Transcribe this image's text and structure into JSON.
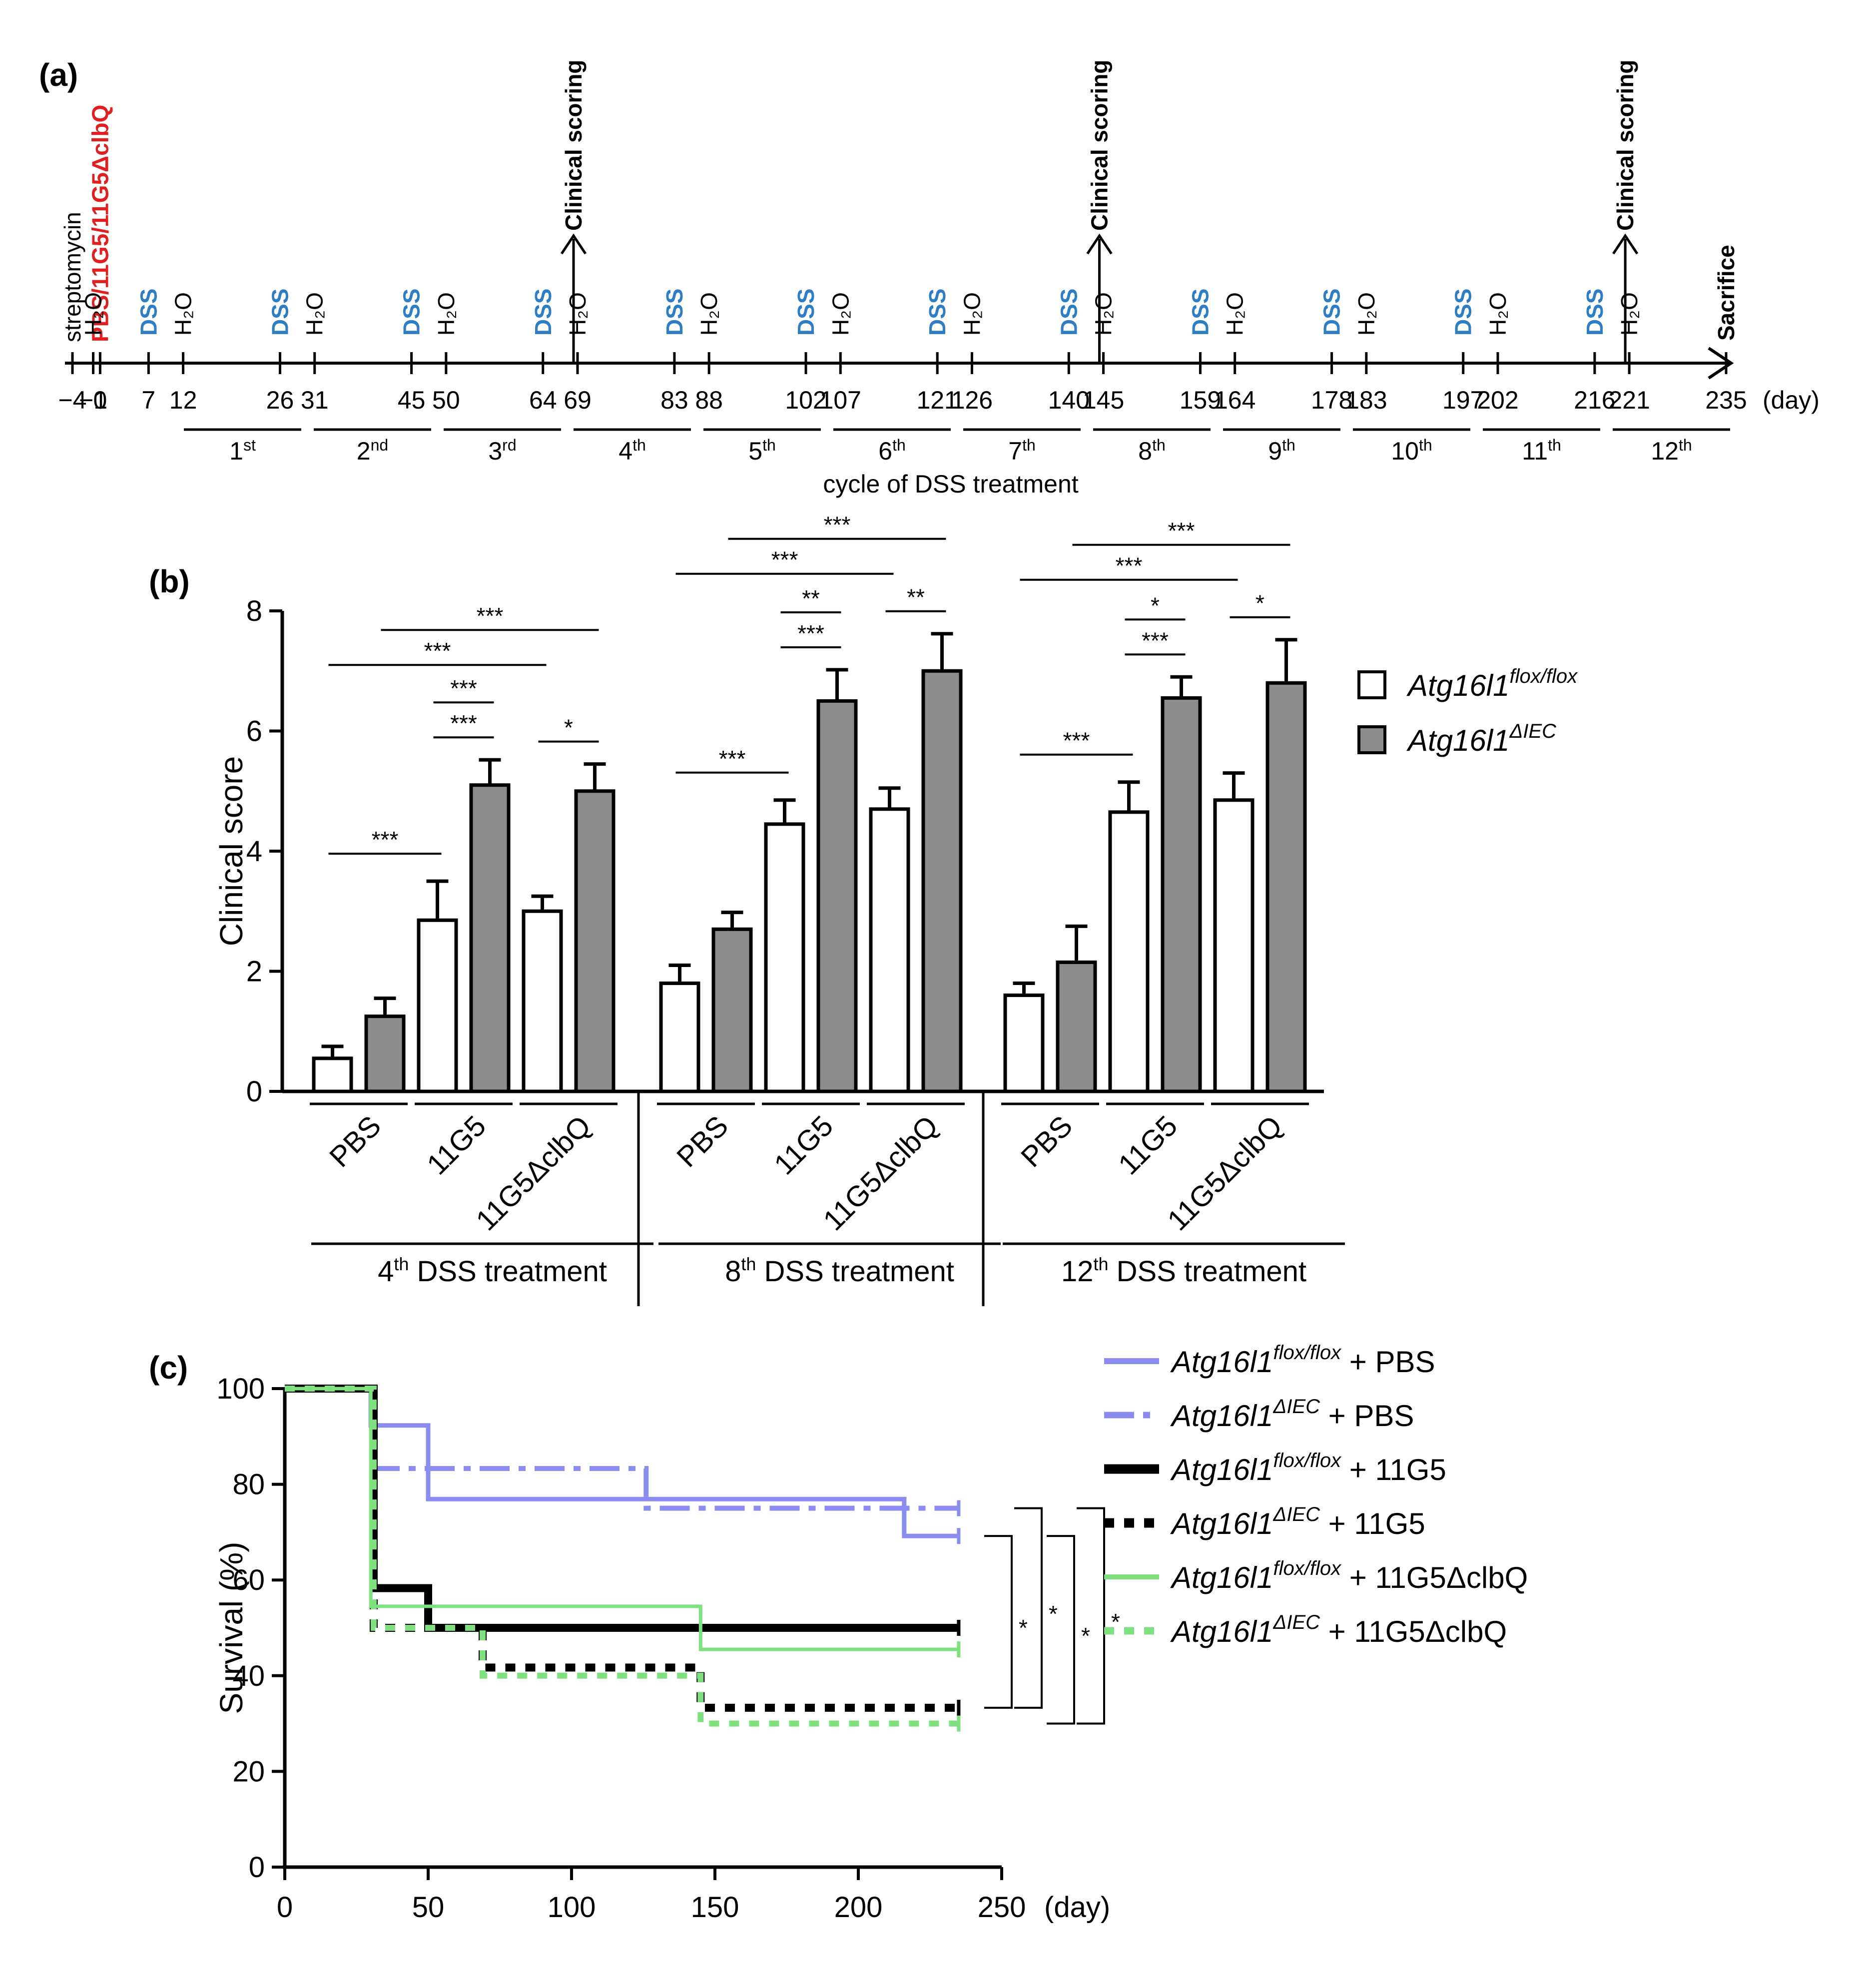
{
  "panels": {
    "a": "(a)",
    "b": "(b)",
    "c": "(c)"
  },
  "timeline": {
    "ticks": [
      "−4",
      "−1",
      "0",
      "7",
      "12",
      "26",
      "31",
      "45",
      "50",
      "64",
      "69",
      "83",
      "88",
      "102",
      "107",
      "121",
      "126",
      "140",
      "145",
      "159",
      "164",
      "178",
      "183",
      "197",
      "202",
      "216",
      "221",
      "235"
    ],
    "days": [
      -4,
      -1,
      0,
      7,
      12,
      26,
      31,
      45,
      50,
      64,
      69,
      83,
      88,
      102,
      107,
      121,
      126,
      140,
      145,
      159,
      164,
      178,
      183,
      197,
      202,
      216,
      221,
      235
    ],
    "day_unit": "(day)",
    "streptomycin": "streptomycin",
    "inoculation": "PBS/11G5/11G5ΔclbQ",
    "dss_label": "DSS",
    "water_label": "H₂O",
    "dss_days": [
      7,
      26,
      45,
      64,
      83,
      102,
      121,
      140,
      159,
      178,
      197,
      216
    ],
    "water_days": [
      -1,
      12,
      31,
      50,
      69,
      88,
      107,
      126,
      145,
      164,
      183,
      202,
      221
    ],
    "clinical_scoring": "Clinical scoring",
    "scoring_days": [
      69,
      145,
      221
    ],
    "sacrifice": "Sacrifice",
    "cycles": [
      "1st",
      "2nd",
      "3rd",
      "4th",
      "5th",
      "6th",
      "7th",
      "8th",
      "9th",
      "10th",
      "11th",
      "12th"
    ],
    "cycle_nums": [
      "1",
      "2",
      "3",
      "4",
      "5",
      "6",
      "7",
      "8",
      "9",
      "10",
      "11",
      "12"
    ],
    "cycle_sups": [
      "st",
      "nd",
      "rd",
      "th",
      "th",
      "th",
      "th",
      "th",
      "th",
      "th",
      "th",
      "th"
    ],
    "cycle_caption": "cycle of DSS treatment"
  },
  "chart_data": [
    {
      "type": "bar",
      "panel": "b",
      "ylabel": "Clinical score",
      "ylim": [
        0,
        8
      ],
      "yticks": [
        0,
        2,
        4,
        6,
        8
      ],
      "ytick_labels": [
        "0",
        "2",
        "4",
        "6",
        "8"
      ],
      "legend": [
        {
          "name": "Atg16l1",
          "sup": "flox/flox",
          "fill": "#ffffff"
        },
        {
          "name": "Atg16l1",
          "sup": "ΔIEC",
          "fill": "#8c8c8c"
        }
      ],
      "categories": [
        "PBS",
        "11G5",
        "11G5ΔclbQ"
      ],
      "treatment_nums": [
        "4",
        "8",
        "12"
      ],
      "treatment_suffix": "th",
      "treatment_tail": " DSS treatment",
      "groups": [
        {
          "treatment": "4th DSS treatment",
          "series": [
            {
              "name": "Atg16l1 flox/flox",
              "values": [
                0.55,
                2.85,
                3.0
              ],
              "errors": [
                0.2,
                0.65,
                0.25
              ]
            },
            {
              "name": "Atg16l1 ΔIEC",
              "values": [
                1.25,
                5.1,
                5.0
              ],
              "errors": [
                0.3,
                0.42,
                0.45
              ]
            }
          ],
          "significance": [
            {
              "label": "***",
              "from": [
                0,
                0
              ],
              "to": [
                1,
                0
              ]
            },
            {
              "label": "***",
              "from": [
                1,
                0
              ],
              "to": [
                1,
                1
              ]
            },
            {
              "label": "***",
              "from": [
                1,
                0
              ],
              "to": [
                1,
                1
              ]
            },
            {
              "label": "*",
              "from": [
                2,
                0
              ],
              "to": [
                2,
                1
              ]
            },
            {
              "label": "***",
              "from": [
                0,
                0
              ],
              "to": [
                2,
                0
              ]
            },
            {
              "label": "***",
              "from": [
                0,
                1
              ],
              "to": [
                2,
                1
              ]
            }
          ]
        },
        {
          "treatment": "8th DSS treatment",
          "series": [
            {
              "name": "Atg16l1 flox/flox",
              "values": [
                1.8,
                4.45,
                4.7
              ],
              "errors": [
                0.3,
                0.4,
                0.35
              ]
            },
            {
              "name": "Atg16l1 ΔIEC",
              "values": [
                2.7,
                6.5,
                7.0
              ],
              "errors": [
                0.28,
                0.52,
                0.62
              ]
            }
          ],
          "significance": [
            {
              "label": "***",
              "from": [
                0,
                0
              ],
              "to": [
                1,
                0
              ]
            },
            {
              "label": "***",
              "from": [
                1,
                0
              ],
              "to": [
                1,
                1
              ]
            },
            {
              "label": "**",
              "from": [
                1,
                0
              ],
              "to": [
                1,
                1
              ]
            },
            {
              "label": "**",
              "from": [
                2,
                0
              ],
              "to": [
                2,
                1
              ]
            },
            {
              "label": "***",
              "from": [
                0,
                0
              ],
              "to": [
                2,
                0
              ]
            },
            {
              "label": "***",
              "from": [
                0,
                1
              ],
              "to": [
                2,
                1
              ]
            }
          ]
        },
        {
          "treatment": "12th DSS treatment",
          "series": [
            {
              "name": "Atg16l1 flox/flox",
              "values": [
                1.6,
                4.65,
                4.85
              ],
              "errors": [
                0.2,
                0.5,
                0.45
              ]
            },
            {
              "name": "Atg16l1 ΔIEC",
              "values": [
                2.15,
                6.55,
                6.8
              ],
              "errors": [
                0.6,
                0.35,
                0.72
              ]
            }
          ],
          "significance": [
            {
              "label": "***",
              "from": [
                0,
                0
              ],
              "to": [
                1,
                0
              ]
            },
            {
              "label": "***",
              "from": [
                1,
                0
              ],
              "to": [
                1,
                1
              ]
            },
            {
              "label": "*",
              "from": [
                1,
                0
              ],
              "to": [
                1,
                1
              ]
            },
            {
              "label": "*",
              "from": [
                2,
                0
              ],
              "to": [
                2,
                1
              ]
            },
            {
              "label": "***",
              "from": [
                0,
                0
              ],
              "to": [
                2,
                0
              ]
            },
            {
              "label": "***",
              "from": [
                0,
                1
              ],
              "to": [
                2,
                1
              ]
            }
          ]
        }
      ]
    },
    {
      "type": "line",
      "panel": "c",
      "ylabel": "Survival (%)",
      "xlabel": "(day)",
      "xlim": [
        0,
        250
      ],
      "ylim": [
        0,
        100
      ],
      "xticks": [
        0,
        50,
        100,
        150,
        200,
        250
      ],
      "xtick_labels": [
        "0",
        "50",
        "100",
        "150",
        "200",
        "250"
      ],
      "yticks": [
        0,
        20,
        40,
        60,
        80,
        100
      ],
      "ytick_labels": [
        "0",
        "20",
        "40",
        "60",
        "80",
        "100"
      ],
      "series": [
        {
          "name": "Atg16l1",
          "sup": "flox/flox",
          "suffix": " + PBS",
          "color": "#8a8cf0",
          "dash": "solid",
          "x": [
            0,
            30,
            50,
            216,
            235
          ],
          "y": [
            100,
            92.3,
            76.9,
            69.2,
            69.2
          ]
        },
        {
          "name": "Atg16l1",
          "sup": "ΔIEC",
          "suffix": " + PBS",
          "color": "#8a8cf0",
          "dash": "dashdot",
          "x": [
            0,
            31,
            126,
            235
          ],
          "y": [
            100,
            83.3,
            75.0,
            75.0
          ]
        },
        {
          "name": "Atg16l1",
          "sup": "flox/flox",
          "suffix": " + 11G5",
          "color": "#000000",
          "dash": "solid",
          "x": [
            0,
            31,
            50,
            235
          ],
          "y": [
            100,
            58.3,
            50.0,
            50.0
          ]
        },
        {
          "name": "Atg16l1",
          "sup": "ΔIEC",
          "suffix": " + 11G5",
          "color": "#000000",
          "dash": "dotted",
          "x": [
            0,
            31,
            69,
            145,
            235
          ],
          "y": [
            100,
            50.0,
            41.7,
            33.3,
            33.3
          ]
        },
        {
          "name": "Atg16l1",
          "sup": "flox/flox",
          "suffix": " + 11G5ΔclbQ",
          "color": "#7ee07e",
          "dash": "solid",
          "x": [
            0,
            30,
            145,
            235
          ],
          "y": [
            100,
            54.5,
            45.5,
            45.5
          ]
        },
        {
          "name": "Atg16l1",
          "sup": "ΔIEC",
          "suffix": " + 11G5ΔclbQ",
          "color": "#7ee07e",
          "dash": "dotted",
          "x": [
            0,
            31,
            69,
            145,
            235
          ],
          "y": [
            100,
            50.0,
            40.0,
            30.0,
            30.0
          ]
        }
      ],
      "significance": [
        {
          "label": "*",
          "from_y": 69.2,
          "to_y": 33.3
        },
        {
          "label": "*",
          "from_y": 75.0,
          "to_y": 33.3
        },
        {
          "label": "*",
          "from_y": 69.2,
          "to_y": 30.0
        },
        {
          "label": "*",
          "from_y": 75.0,
          "to_y": 30.0
        }
      ]
    }
  ]
}
